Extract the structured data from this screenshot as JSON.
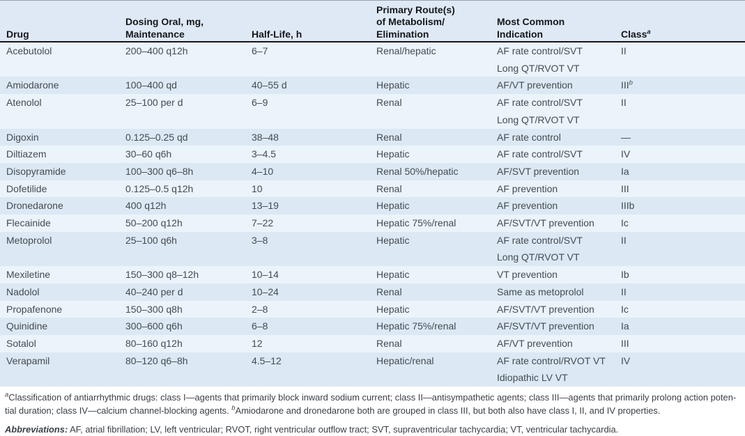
{
  "table": {
    "columns": [
      {
        "id": "drug",
        "lines": [
          "Drug"
        ]
      },
      {
        "id": "dosing",
        "lines": [
          "Dosing Oral, mg,",
          "Maintenance"
        ]
      },
      {
        "id": "half-life",
        "lines": [
          "Half-Life, h"
        ]
      },
      {
        "id": "route",
        "lines": [
          "Primary Route(s)",
          "of Metabolism/",
          "Elimination"
        ]
      },
      {
        "id": "indication",
        "lines": [
          "Most Common",
          "Indication"
        ]
      },
      {
        "id": "class",
        "lines": [
          "Class"
        ],
        "sup": "a"
      }
    ],
    "rows": [
      {
        "drug": "Acebutolol",
        "dosing": "200–400 q12h",
        "half_life": "6–7",
        "route": "Renal/hepatic",
        "indication": [
          "AF rate control/SVT",
          "Long QT/RVOT VT"
        ],
        "class": "II"
      },
      {
        "drug": "Amiodarone",
        "dosing": "100–400 qd",
        "half_life": "40–55 d",
        "route": "Hepatic",
        "indication": [
          "AF/VT prevention"
        ],
        "class": "III",
        "class_sup": "b"
      },
      {
        "drug": "Atenolol",
        "dosing": "25–100 per d",
        "half_life": "6–9",
        "route": "Renal",
        "indication": [
          "AF rate control/SVT",
          "Long QT/RVOT VT"
        ],
        "class": "II"
      },
      {
        "drug": "Digoxin",
        "dosing": "0.125–0.25 qd",
        "half_life": "38–48",
        "route": "Renal",
        "indication": [
          "AF rate control"
        ],
        "class": "—"
      },
      {
        "drug": "Diltiazem",
        "dosing": "30–60 q6h",
        "half_life": "3–4.5",
        "route": "Hepatic",
        "indication": [
          "AF rate control/SVT"
        ],
        "class": "IV"
      },
      {
        "drug": "Disopyramide",
        "dosing": "100–300 q6–8h",
        "half_life": "4–10",
        "route": "Renal 50%/hepatic",
        "indication": [
          "AF/SVT prevention"
        ],
        "class": "Ia"
      },
      {
        "drug": "Dofetilide",
        "dosing": "0.125–0.5 q12h",
        "half_life": "10",
        "route": "Renal",
        "indication": [
          "AF prevention"
        ],
        "class": "III"
      },
      {
        "drug": "Dronedarone",
        "dosing": "400 q12h",
        "half_life": "13–19",
        "route": "Hepatic",
        "indication": [
          "AF prevention"
        ],
        "class": "IIIb"
      },
      {
        "drug": "Flecainide",
        "dosing": "50–200 q12h",
        "half_life": "7–22",
        "route": "Hepatic 75%/renal",
        "indication": [
          "AF/SVT/VT prevention"
        ],
        "class": "Ic"
      },
      {
        "drug": "Metoprolol",
        "dosing": "25–100 q6h",
        "half_life": "3–8",
        "route": "Hepatic",
        "indication": [
          "AF rate control/SVT",
          "Long QT/RVOT VT"
        ],
        "class": "II"
      },
      {
        "drug": "Mexiletine",
        "dosing": "150–300 q8–12h",
        "half_life": "10–14",
        "route": "Hepatic",
        "indication": [
          "VT prevention"
        ],
        "class": "Ib"
      },
      {
        "drug": "Nadolol",
        "dosing": "40–240 per d",
        "half_life": "10–24",
        "route": "Renal",
        "indication": [
          "Same as metoprolol"
        ],
        "class": "II"
      },
      {
        "drug": "Propafenone",
        "dosing": "150–300 q8h",
        "half_life": "2–8",
        "route": "Hepatic",
        "indication": [
          "AF/SVT/VT prevention"
        ],
        "class": "Ic"
      },
      {
        "drug": "Quinidine",
        "dosing": "300–600 q6h",
        "half_life": "6–8",
        "route": "Hepatic 75%/renal",
        "indication": [
          "AF/SVT/VT prevention"
        ],
        "class": "Ia"
      },
      {
        "drug": "Sotalol",
        "dosing": "80–160 q12h",
        "half_life": "12",
        "route": "Renal",
        "indication": [
          "AF/VT prevention"
        ],
        "class": "III"
      },
      {
        "drug": "Verapamil",
        "dosing": "80–120 q6–8h",
        "half_life": "4.5–12",
        "route": "Hepatic/renal",
        "indication": [
          "AF rate control/RVOT VT",
          "Idiopathic LV VT"
        ],
        "class": "IV"
      }
    ]
  },
  "footnotes": {
    "marker_a": "a",
    "line1": "Classification of antiarrhythmic drugs: class I—agents that primarily block inward sodium current; class II—antisympathetic agents; class III—agents that primarily prolong action poten-",
    "line2_pre": "tial duration; class IV—calcium channel-blocking agents. ",
    "marker_b": "b",
    "line2_post": "Amiodarone and dronedarone both are grouped in class III, but both also have class I, II, and IV properties.",
    "abbrev_label": "Abbreviations:",
    "abbrev_text": " AF, atrial fibrillation; LV, left ventricular; RVOT, right ventricular outflow tract; SVT, supraventricular tachycardia; VT, ventricular tachycardia."
  }
}
